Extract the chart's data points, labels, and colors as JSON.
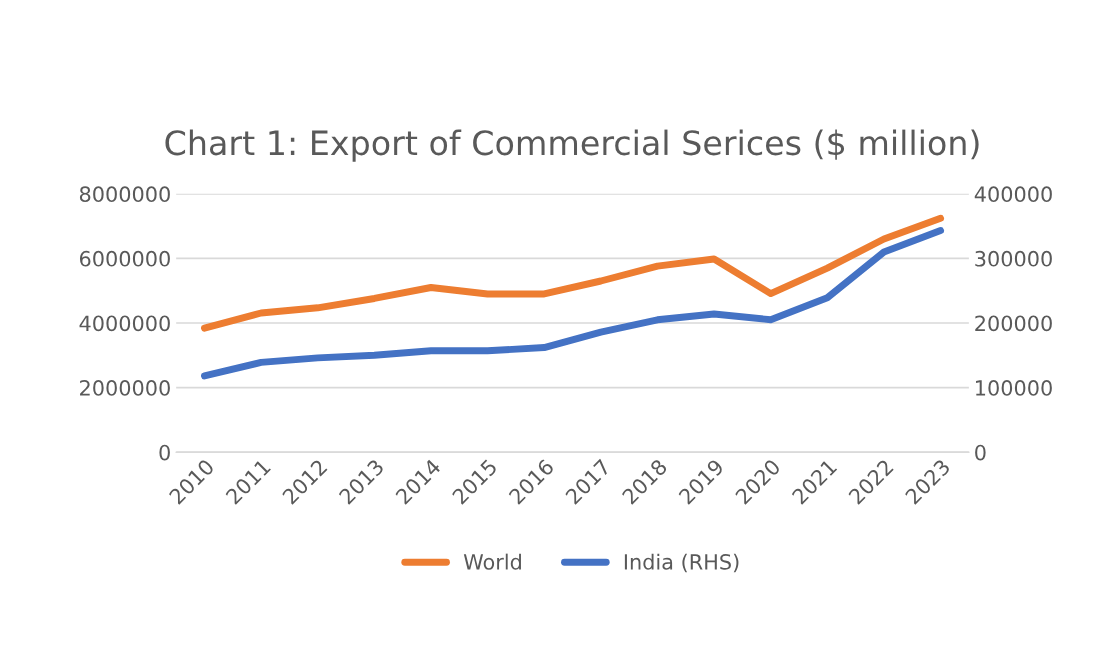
{
  "chart_data": {
    "type": "line",
    "title": "Chart 1: Export of Commercial Serices ($ million)",
    "categories": [
      "2010",
      "2011",
      "2012",
      "2013",
      "2014",
      "2015",
      "2016",
      "2017",
      "2018",
      "2019",
      "2020",
      "2021",
      "2022",
      "2023"
    ],
    "series": [
      {
        "name": "World",
        "color": "#ed7d31",
        "values": [
          3840000,
          4310000,
          4470000,
          4760000,
          5100000,
          4900000,
          4900000,
          5300000,
          5760000,
          5980000,
          4910000,
          5700000,
          6600000,
          7240000
        ]
      },
      {
        "name": "India (RHS)",
        "color": "#4472c4",
        "axis": "y2",
        "values": [
          118000,
          139000,
          146000,
          150000,
          157000,
          157000,
          162000,
          186000,
          205000,
          214000,
          205000,
          239000,
          310000,
          343000
        ]
      }
    ],
    "ylim": [
      0,
      8000000
    ],
    "yticks": [
      0,
      2000000,
      4000000,
      6000000,
      8000000
    ],
    "y2lim": [
      0,
      400000
    ],
    "y2ticks": [
      0,
      100000,
      200000,
      300000,
      400000
    ],
    "grid": "y",
    "legend": "bottom",
    "marker": "none",
    "line_style": "solid"
  }
}
